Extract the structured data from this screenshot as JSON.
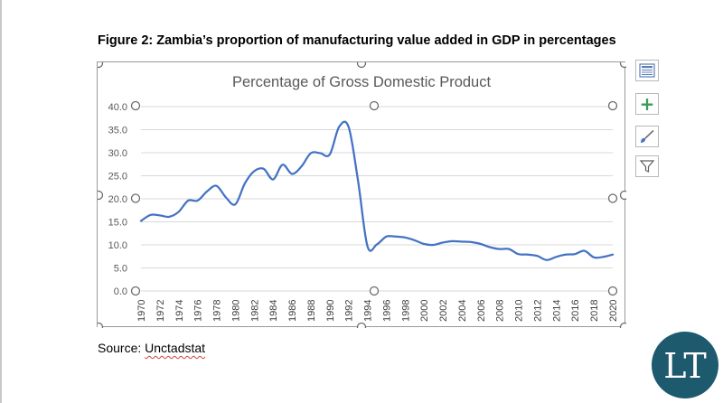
{
  "figure_caption": "Figure 2: Zambia’s proportion of manufacturing value added in GDP in percentages",
  "source": {
    "prefix": "Source: ",
    "name": "Unctadstat"
  },
  "logo": {
    "text": "LT",
    "bg_color": "#1e5a6e",
    "ring_color": "#ffffff"
  },
  "side_buttons": [
    {
      "name": "chart-elements-button",
      "icon": "layout-icon"
    },
    {
      "name": "add-element-button",
      "icon": "plus-icon"
    },
    {
      "name": "chart-styles-button",
      "icon": "brush-icon"
    },
    {
      "name": "chart-filters-button",
      "icon": "filter-icon"
    }
  ],
  "chart_data": {
    "type": "line",
    "title": "Percentage of Gross Domestic Product",
    "xlabel": "",
    "ylabel": "",
    "xlim": [
      1970,
      2020
    ],
    "ylim": [
      0,
      40
    ],
    "y_ticks": [
      "0.0",
      "5.0",
      "10.0",
      "15.0",
      "20.0",
      "25.0",
      "30.0",
      "35.0",
      "40.0"
    ],
    "x_ticks": [
      "1970",
      "1972",
      "1974",
      "1976",
      "1978",
      "1980",
      "1982",
      "1984",
      "1986",
      "1988",
      "1990",
      "1992",
      "1994",
      "1996",
      "1998",
      "2000",
      "2002",
      "2004",
      "2006",
      "2008",
      "2010",
      "2012",
      "2014",
      "2016",
      "2018",
      "2020"
    ],
    "grid": true,
    "legend": "none",
    "line_color": "#4472c4",
    "series": [
      {
        "x": [
          1970,
          1971,
          1972,
          1973,
          1974,
          1975,
          1976,
          1977,
          1978,
          1979,
          1980,
          1981,
          1982,
          1983,
          1984,
          1985,
          1986,
          1987,
          1988,
          1989,
          1990,
          1991,
          1992,
          1993,
          1994,
          1995,
          1996,
          1997,
          1998,
          1999,
          2000,
          2001,
          2002,
          2003,
          2004,
          2005,
          2006,
          2007,
          2008,
          2009,
          2010,
          2011,
          2012,
          2013,
          2014,
          2015,
          2016,
          2017,
          2018,
          2019,
          2020
        ],
        "values": [
          15.2,
          16.5,
          16.4,
          16.1,
          17.2,
          19.6,
          19.6,
          21.6,
          22.8,
          20.3,
          18.8,
          23.3,
          26.0,
          26.5,
          24.2,
          27.4,
          25.4,
          27.0,
          29.9,
          29.9,
          29.6,
          35.6,
          35.6,
          24.0,
          9.7,
          10.1,
          11.8,
          11.8,
          11.6,
          11.0,
          10.2,
          10.0,
          10.5,
          10.8,
          10.7,
          10.6,
          10.2,
          9.5,
          9.1,
          9.1,
          8.0,
          7.9,
          7.6,
          6.7,
          7.4,
          7.9,
          8.0,
          8.7,
          7.3,
          7.4,
          7.9
        ]
      }
    ]
  }
}
